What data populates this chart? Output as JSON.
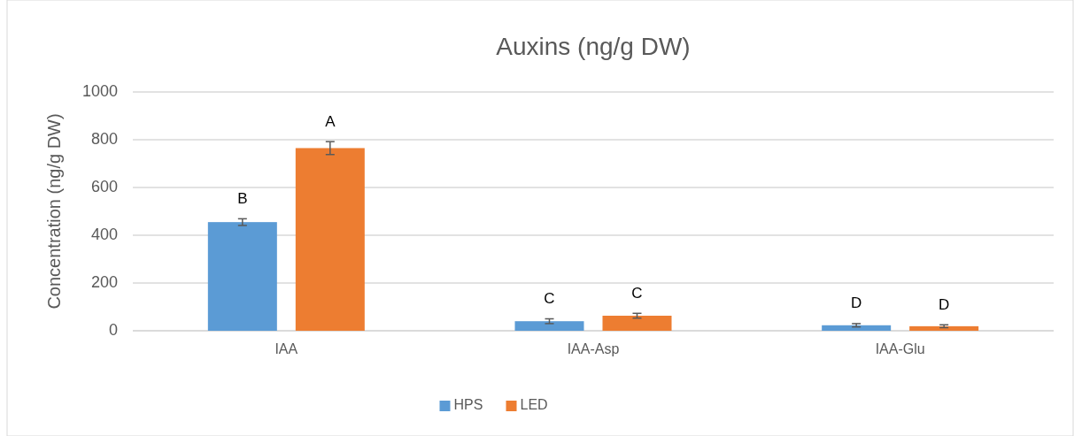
{
  "chart_data": {
    "type": "bar",
    "title": "Auxins (ng/g DW)",
    "ylabel": "Concentration (ng/g DW)",
    "categories": [
      "IAA",
      "IAA-Asp",
      "IAA-Glu"
    ],
    "series": [
      {
        "name": "HPS",
        "color": "#5b9bd5",
        "values": [
          455,
          40,
          23
        ],
        "errors": [
          14,
          10,
          7
        ]
      },
      {
        "name": "LED",
        "color": "#ed7d31",
        "values": [
          765,
          63,
          19
        ],
        "errors": [
          27,
          10,
          6
        ]
      }
    ],
    "ylim": [
      0,
      1000
    ],
    "yticks": [
      0,
      200,
      400,
      600,
      800,
      1000
    ],
    "grid": "y",
    "legend": "bottom",
    "annotations": [
      "B",
      "A",
      "C",
      "C",
      "D",
      "D"
    ]
  }
}
